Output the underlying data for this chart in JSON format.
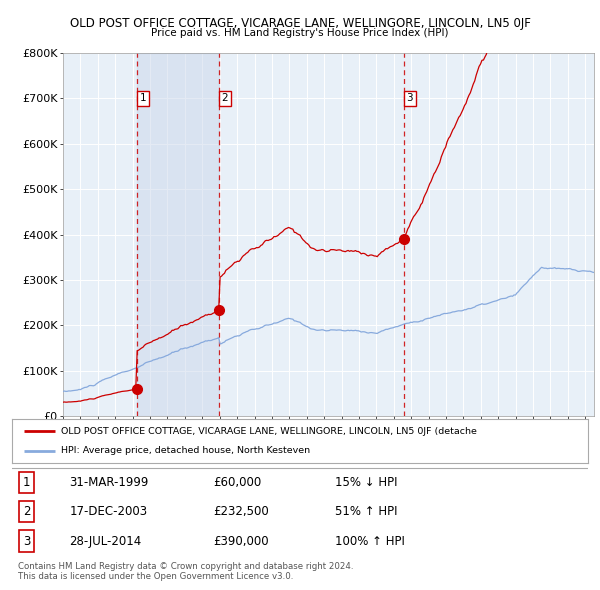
{
  "title1": "OLD POST OFFICE COTTAGE, VICARAGE LANE, WELLINGORE, LINCOLN, LN5 0JF",
  "title2": "Price paid vs. HM Land Registry's House Price Index (HPI)",
  "plot_bg": "#e8f0f8",
  "ylim": [
    0,
    800000
  ],
  "yticks": [
    0,
    100000,
    200000,
    300000,
    400000,
    500000,
    600000,
    700000,
    800000
  ],
  "ytick_labels": [
    "£0",
    "£100K",
    "£200K",
    "£300K",
    "£400K",
    "£500K",
    "£600K",
    "£700K",
    "£800K"
  ],
  "xlim_start": 1995.0,
  "xlim_end": 2025.5,
  "sale_dates": [
    1999.25,
    2003.96,
    2014.57
  ],
  "sale_prices": [
    60000,
    232500,
    390000
  ],
  "sale_labels": [
    "1",
    "2",
    "3"
  ],
  "red_line_color": "#cc0000",
  "blue_line_color": "#88aadd",
  "marker_color": "#cc0000",
  "dashed_color": "#cc0000",
  "legend_label_red": "OLD POST OFFICE COTTAGE, VICARAGE LANE, WELLINGORE, LINCOLN, LN5 0JF (detache",
  "legend_label_blue": "HPI: Average price, detached house, North Kesteven",
  "table_rows": [
    {
      "num": "1",
      "date": "31-MAR-1999",
      "price": "£60,000",
      "hpi": "15% ↓ HPI"
    },
    {
      "num": "2",
      "date": "17-DEC-2003",
      "price": "£232,500",
      "hpi": "51% ↑ HPI"
    },
    {
      "num": "3",
      "date": "28-JUL-2014",
      "price": "£390,000",
      "hpi": "100% ↑ HPI"
    }
  ],
  "footer": "Contains HM Land Registry data © Crown copyright and database right 2024.\nThis data is licensed under the Open Government Licence v3.0."
}
